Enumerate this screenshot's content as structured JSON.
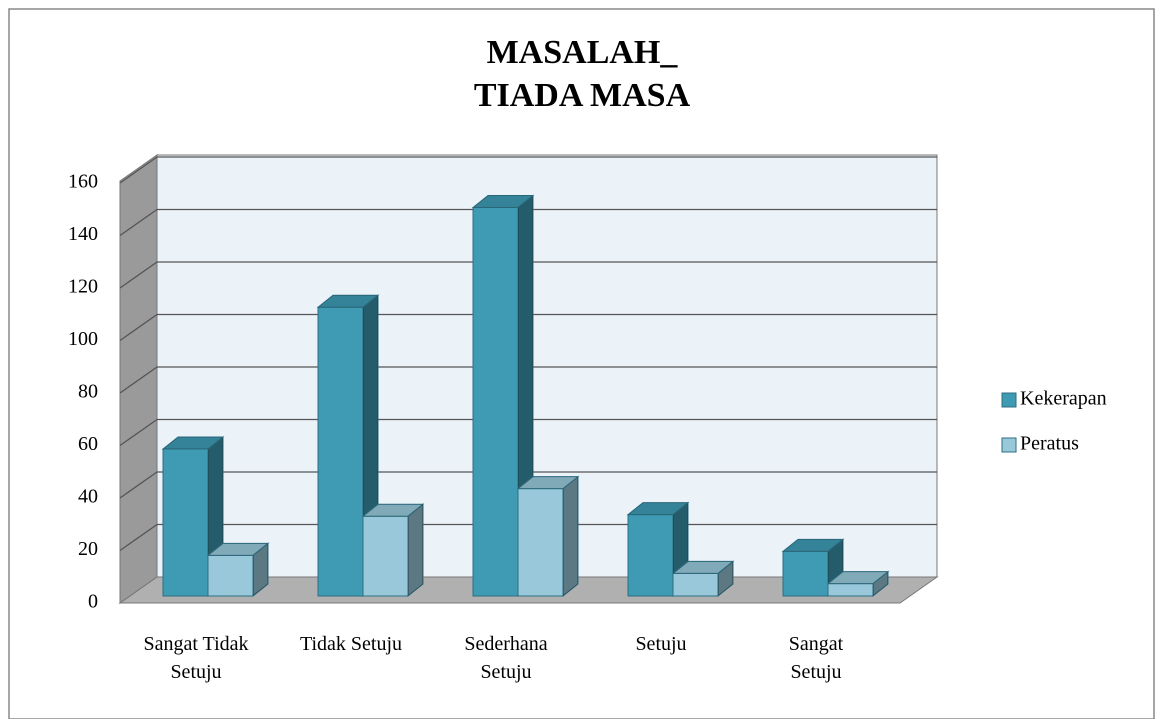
{
  "chart_data": {
    "type": "bar3d",
    "title": [
      "MASALAH_",
      "TIADA MASA"
    ],
    "categories": [
      "Sangat Tidak Setuju",
      "Tidak Setuju",
      "Sederhana Setuju",
      "Setuju",
      "Sangat Setuju"
    ],
    "series": [
      {
        "name": "Kekerapan",
        "color": "#3f9ab3",
        "values": [
          56,
          110,
          148,
          31,
          17
        ]
      },
      {
        "name": "Peratus",
        "color": "#98c8da",
        "values": [
          15.5,
          30.4,
          40.9,
          8.6,
          4.7
        ]
      }
    ],
    "ylim": [
      0,
      160
    ],
    "yticks": [
      0,
      20,
      40,
      60,
      80,
      100,
      120,
      140,
      160
    ],
    "grid": true,
    "legend": "right"
  }
}
